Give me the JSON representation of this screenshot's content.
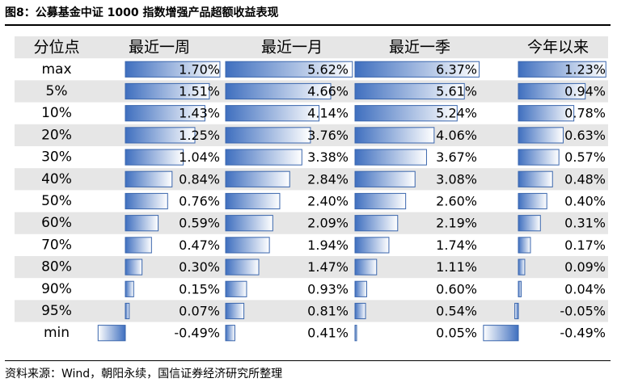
{
  "figure": {
    "title": "图8：公募基金中证 1000 指数增强产品超额收益表现",
    "source": "资料来源：Wind，朝阳永续，国信证券经济研究所整理"
  },
  "chart_data": {
    "type": "table",
    "row_header": "分位点",
    "rows": [
      "max",
      "5%",
      "10%",
      "20%",
      "30%",
      "40%",
      "50%",
      "60%",
      "70%",
      "80%",
      "90%",
      "95%",
      "min"
    ],
    "columns": [
      {
        "name": "最近一周",
        "values": [
          1.7,
          1.51,
          1.43,
          1.25,
          1.04,
          0.84,
          0.76,
          0.59,
          0.47,
          0.3,
          0.15,
          0.07,
          -0.49
        ],
        "labels": [
          "1.70%",
          "1.51%",
          "1.43%",
          "1.25%",
          "1.04%",
          "0.84%",
          "0.76%",
          "0.59%",
          "0.47%",
          "0.30%",
          "0.15%",
          "0.07%",
          "-0.49%"
        ]
      },
      {
        "name": "最近一月",
        "values": [
          5.62,
          4.66,
          4.14,
          3.76,
          3.38,
          2.84,
          2.4,
          2.09,
          1.94,
          1.47,
          0.93,
          0.81,
          0.41
        ],
        "labels": [
          "5.62%",
          "4.66%",
          "4.14%",
          "3.76%",
          "3.38%",
          "2.84%",
          "2.40%",
          "2.09%",
          "1.94%",
          "1.47%",
          "0.93%",
          "0.81%",
          "0.41%"
        ]
      },
      {
        "name": "最近一季",
        "values": [
          6.37,
          5.61,
          5.24,
          4.06,
          3.67,
          3.08,
          2.6,
          2.19,
          1.74,
          1.11,
          0.6,
          0.54,
          0.05
        ],
        "labels": [
          "6.37%",
          "5.61%",
          "5.24%",
          "4.06%",
          "3.67%",
          "3.08%",
          "2.60%",
          "2.19%",
          "1.74%",
          "1.11%",
          "0.60%",
          "0.54%",
          "0.05%"
        ]
      },
      {
        "name": "今年以来",
        "values": [
          1.23,
          0.94,
          0.78,
          0.63,
          0.57,
          0.48,
          0.4,
          0.31,
          0.17,
          0.09,
          0.04,
          -0.05,
          -0.49
        ],
        "labels": [
          "1.23%",
          "0.94%",
          "0.78%",
          "0.63%",
          "0.57%",
          "0.48%",
          "0.40%",
          "0.31%",
          "0.17%",
          "0.09%",
          "0.04%",
          "-0.05%",
          "-0.49%"
        ]
      }
    ],
    "colors": {
      "bar_dark": "#3f6fbf",
      "bar_light": "#ffffff",
      "bar_border": "#3a66ad",
      "stripe": "#e6e6e6"
    }
  }
}
